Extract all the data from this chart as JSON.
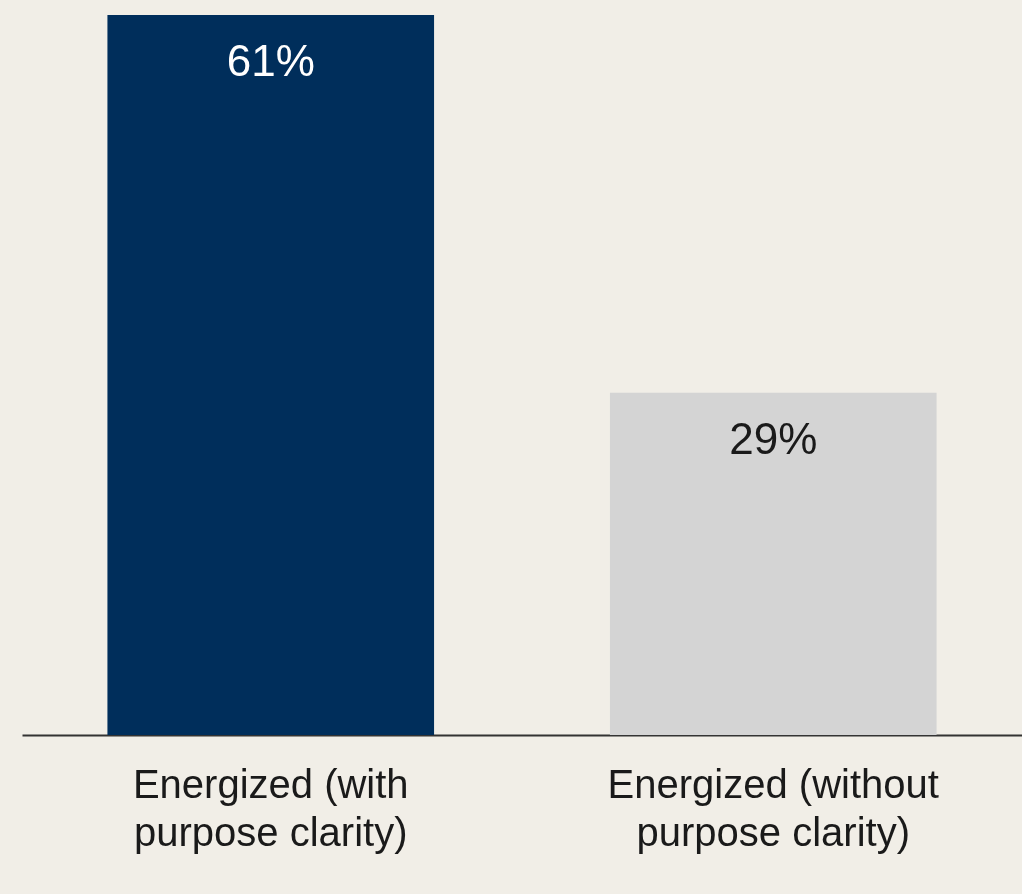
{
  "chart_data": {
    "type": "bar",
    "categories": [
      "Energized (with purpose clarity)",
      "Energized (without purpose clarity)"
    ],
    "values": [
      61,
      29
    ],
    "colors": [
      "#002e5b",
      "#d4d4d4"
    ],
    "value_labels": [
      "61%",
      "29%"
    ]
  }
}
